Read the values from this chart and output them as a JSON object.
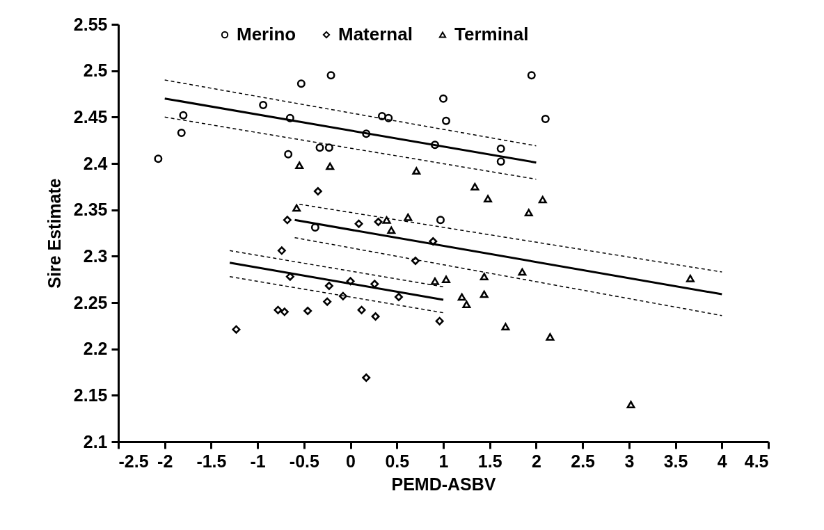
{
  "chart_data": {
    "type": "scatter",
    "xlabel": "PEMD-ASBV",
    "ylabel": "Sire Estimate",
    "xlim": [
      -2.5,
      4.5
    ],
    "ylim": [
      2.1,
      2.55
    ],
    "xticks": [
      -2.5,
      -2,
      -1.5,
      -1,
      -0.5,
      0,
      0.5,
      1,
      1.5,
      2,
      2.5,
      3,
      3.5,
      4,
      4.5
    ],
    "yticks": [
      2.1,
      2.15,
      2.2,
      2.25,
      2.3,
      2.35,
      2.4,
      2.45,
      2.5,
      2.55
    ],
    "legend": "top",
    "series": [
      {
        "name": "Merino",
        "marker": "circle",
        "color": "#000000",
        "x": [
          -2.07,
          -1.82,
          -1.8,
          -0.94,
          -0.67,
          -0.65,
          -0.53,
          -0.38,
          -0.33,
          -0.23,
          -0.21,
          0.17,
          0.34,
          0.41,
          0.91,
          0.97,
          1.0,
          1.03,
          1.62,
          1.62,
          1.95,
          2.1
        ],
        "values": [
          2.405,
          2.433,
          2.452,
          2.463,
          2.41,
          2.449,
          2.486,
          2.331,
          2.417,
          2.417,
          2.495,
          2.432,
          2.451,
          2.449,
          2.42,
          2.339,
          2.47,
          2.446,
          2.416,
          2.402,
          2.495,
          2.448
        ]
      },
      {
        "name": "Maternal",
        "marker": "diamond",
        "color": "#000000",
        "x": [
          -1.23,
          -0.78,
          -0.74,
          -0.71,
          -0.68,
          -0.65,
          -0.46,
          -0.35,
          -0.25,
          -0.23,
          -0.08,
          0.0,
          0.09,
          0.12,
          0.17,
          0.26,
          0.27,
          0.3,
          0.52,
          0.7,
          0.89,
          0.96
        ],
        "values": [
          2.221,
          2.242,
          2.306,
          2.24,
          2.339,
          2.278,
          2.241,
          2.37,
          2.251,
          2.268,
          2.257,
          2.273,
          2.335,
          2.242,
          2.169,
          2.27,
          2.235,
          2.337,
          2.256,
          2.295,
          2.316,
          2.23
        ]
      },
      {
        "name": "Terminal",
        "marker": "triangle",
        "color": "#000000",
        "x": [
          -0.58,
          -0.55,
          -0.22,
          0.39,
          0.44,
          0.62,
          0.71,
          0.91,
          1.03,
          1.2,
          1.25,
          1.34,
          1.44,
          1.44,
          1.48,
          1.67,
          1.85,
          1.92,
          2.07,
          2.15,
          3.02,
          3.66
        ],
        "values": [
          2.352,
          2.398,
          2.397,
          2.339,
          2.328,
          2.342,
          2.392,
          2.273,
          2.275,
          2.256,
          2.248,
          2.375,
          2.278,
          2.259,
          2.362,
          2.224,
          2.283,
          2.347,
          2.361,
          2.213,
          2.14,
          2.276
        ]
      },
      {
        "type": "line",
        "line_style": "solid",
        "color": "#000000",
        "x": [
          -2.0,
          2.0
        ],
        "values": [
          2.47,
          2.401
        ]
      },
      {
        "type": "line",
        "line_style": "dashed",
        "color": "#000000",
        "x": [
          -2.0,
          2.0
        ],
        "values": [
          2.49,
          2.419
        ]
      },
      {
        "type": "line",
        "line_style": "dashed",
        "color": "#000000",
        "x": [
          -2.0,
          2.0
        ],
        "values": [
          2.45,
          2.383
        ]
      },
      {
        "type": "line",
        "line_style": "solid",
        "color": "#000000",
        "x": [
          -1.3,
          1.0
        ],
        "values": [
          2.293,
          2.253
        ]
      },
      {
        "type": "line",
        "line_style": "dashed",
        "color": "#000000",
        "x": [
          -1.3,
          1.0
        ],
        "values": [
          2.306,
          2.267
        ]
      },
      {
        "type": "line",
        "line_style": "dashed",
        "color": "#000000",
        "x": [
          -1.3,
          1.0
        ],
        "values": [
          2.278,
          2.239
        ]
      },
      {
        "type": "line",
        "line_style": "solid",
        "color": "#000000",
        "x": [
          -0.6,
          4.0
        ],
        "values": [
          2.339,
          2.259
        ]
      },
      {
        "type": "line",
        "line_style": "dashed",
        "color": "#000000",
        "x": [
          -0.55,
          4.0
        ],
        "values": [
          2.356,
          2.283
        ]
      },
      {
        "type": "line",
        "line_style": "dashed",
        "color": "#000000",
        "x": [
          -0.6,
          4.0
        ],
        "values": [
          2.32,
          2.236
        ]
      }
    ]
  }
}
